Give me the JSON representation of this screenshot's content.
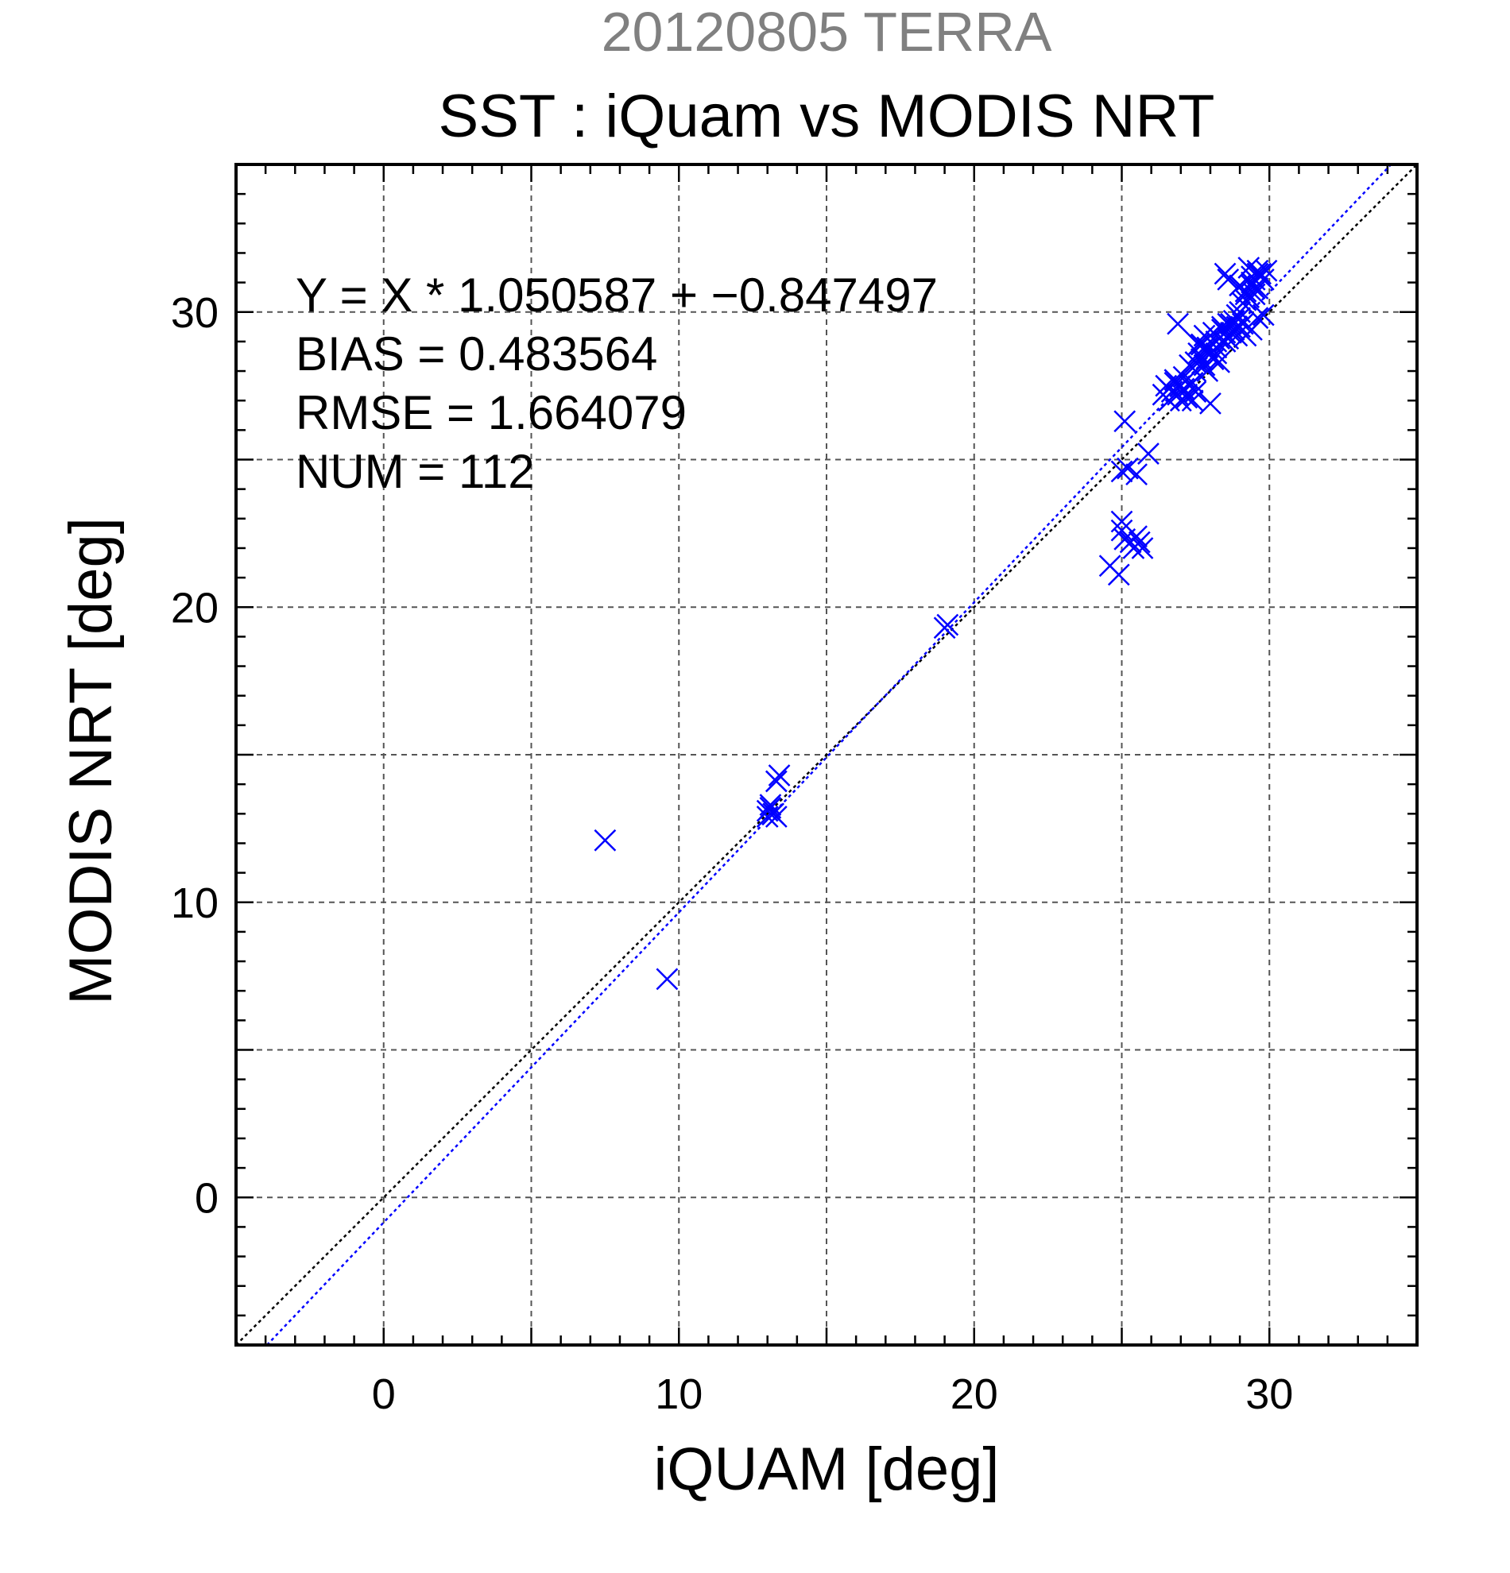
{
  "chart_data": {
    "type": "scatter",
    "suptitle": "20120805 TERRA",
    "title": "SST : iQuam vs MODIS NRT",
    "xlabel": "iQUAM [deg]",
    "ylabel": "MODIS NRT [deg]",
    "xlim": [
      -5,
      35
    ],
    "ylim": [
      -5,
      35
    ],
    "xticks": [
      0,
      10,
      20,
      30
    ],
    "yticks": [
      0,
      10,
      20,
      30
    ],
    "minor_step": 1,
    "grid_step": 5,
    "grid": true,
    "marker": "x",
    "marker_color": "#0000ff",
    "stats": [
      "Y = X * 1.050587 + −0.847497",
      "BIAS = 0.483564",
      "RMSE = 1.664079",
      "NUM = 112"
    ],
    "fit_line": {
      "slope": 1.050587,
      "intercept": -0.847497,
      "color": "#0000ff",
      "style": "dotted"
    },
    "identity_line": {
      "slope": 1,
      "intercept": 0,
      "color": "#000000",
      "style": "dotted"
    },
    "series": [
      {
        "x": [
          7.5,
          9.6,
          13.0,
          13.1,
          13.2,
          13.3,
          13.3,
          13.4,
          13.0,
          13.1,
          19.1,
          19.0,
          24.6,
          24.9,
          25.0,
          25.0,
          25.1,
          25.0,
          25.3,
          25.4,
          25.5,
          25.7,
          25.6,
          25.5,
          25.9,
          25.1,
          25.2,
          26.4,
          26.5,
          26.6,
          26.7,
          26.8,
          26.9,
          27.0,
          27.1,
          27.2,
          27.3,
          27.4,
          27.5,
          26.6,
          26.8,
          27.0,
          27.2,
          27.4,
          26.9,
          27.1,
          27.3,
          27.5,
          27.6,
          27.7,
          27.8,
          27.9,
          28.0,
          28.1,
          28.2,
          27.6,
          27.8,
          28.0,
          28.2,
          27.7,
          27.9,
          28.1,
          27.5,
          27.9,
          28.0,
          28.3,
          28.3,
          28.4,
          28.5,
          28.6,
          28.7,
          28.8,
          28.9,
          29.0,
          28.4,
          28.6,
          28.8,
          29.0,
          28.5,
          28.7,
          28.9,
          29.0,
          29.1,
          29.2,
          29.3,
          29.4,
          29.5,
          29.6,
          29.7,
          29.2,
          29.4,
          29.6,
          29.8,
          29.5,
          29.7,
          29.9,
          29.3,
          29.4,
          29.5,
          28.5,
          28.6,
          29.0,
          29.1,
          29.6,
          29.8,
          29.4,
          29.2,
          28.2,
          27.7,
          28.9,
          29.6,
          29.2
        ],
        "y": [
          12.1,
          7.4,
          13.1,
          13.3,
          13.0,
          12.9,
          14.1,
          14.3,
          12.9,
          13.2,
          19.4,
          19.3,
          21.4,
          21.1,
          22.6,
          22.9,
          22.3,
          24.6,
          22.2,
          22.0,
          22.4,
          22.0,
          22.2,
          24.5,
          25.2,
          26.3,
          24.7,
          27.2,
          27.5,
          27.0,
          27.3,
          27.6,
          27.2,
          27.0,
          27.4,
          27.1,
          27.5,
          27.0,
          27.3,
          27.4,
          27.7,
          27.5,
          27.2,
          27.6,
          29.6,
          27.8,
          28.2,
          28.3,
          28.6,
          28.9,
          28.2,
          28.7,
          29.0,
          28.4,
          28.8,
          28.9,
          29.2,
          28.6,
          29.0,
          28.4,
          28.8,
          29.3,
          28.0,
          28.0,
          26.9,
          28.3,
          29.1,
          29.4,
          29.0,
          29.6,
          29.3,
          29.7,
          29.2,
          29.5,
          29.5,
          29.1,
          29.4,
          29.8,
          29.3,
          29.6,
          29.9,
          30.0,
          30.3,
          30.7,
          30.5,
          30.9,
          31.1,
          30.8,
          31.2,
          30.6,
          31.0,
          31.3,
          31.1,
          30.8,
          31.3,
          31.4,
          31.5,
          31.2,
          30.6,
          31.3,
          31.1,
          30.9,
          29.6,
          29.8,
          29.9,
          29.4,
          29.2,
          28.6,
          28.9,
          29.5,
          31.4,
          30.4
        ]
      }
    ]
  }
}
